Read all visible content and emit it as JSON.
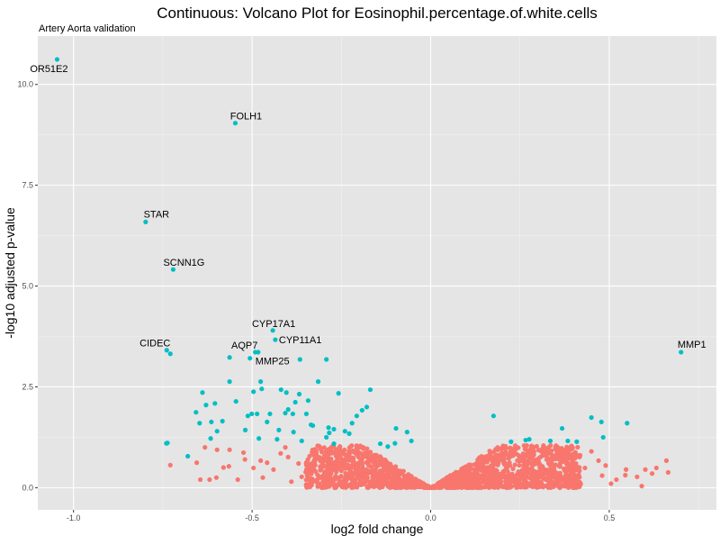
{
  "chart_data": {
    "type": "scatter",
    "title": "Continuous: Volcano Plot for Eosinophil.percentage.of.white.cells",
    "subtitle": "Artery Aorta validation",
    "xlabel": "log2 fold change",
    "ylabel": "-log10 adjusted p-value",
    "xlim": [
      -1.1,
      0.8
    ],
    "ylim": [
      -0.55,
      11.2
    ],
    "x_ticks": [
      {
        "v": -1.0,
        "label": "-1.0"
      },
      {
        "v": -0.5,
        "label": "-0.5"
      },
      {
        "v": 0.0,
        "label": "0.0"
      },
      {
        "v": 0.5,
        "label": "0.5"
      }
    ],
    "y_ticks": [
      {
        "v": 0.0,
        "label": "0.0"
      },
      {
        "v": 2.5,
        "label": "2.5"
      },
      {
        "v": 5.0,
        "label": "5.0"
      },
      {
        "v": 7.5,
        "label": "7.5"
      },
      {
        "v": 10.0,
        "label": "10.0"
      }
    ],
    "grid": true,
    "colors": {
      "significant": "#00BFC4",
      "not_significant": "#F8766D",
      "panel": "#E5E5E5"
    },
    "labeled_points": [
      {
        "gene": "OR51E2",
        "x": -1.046,
        "y": 10.62
      },
      {
        "gene": "FOLH1",
        "x": -0.547,
        "y": 9.04
      },
      {
        "gene": "STAR",
        "x": -0.798,
        "y": 6.59
      },
      {
        "gene": "SCNN1G",
        "x": -0.721,
        "y": 5.41
      },
      {
        "gene": "CYP17A1",
        "x": -0.442,
        "y": 3.9
      },
      {
        "gene": "CYP11A1",
        "x": -0.435,
        "y": 3.67
      },
      {
        "gene": "CIDEC",
        "x": -0.739,
        "y": 3.41
      },
      {
        "gene": "AQP7",
        "x": -0.491,
        "y": 3.36
      },
      {
        "gene": "MMP25",
        "x": -0.506,
        "y": 3.21
      },
      {
        "gene": "MMP1",
        "x": 0.701,
        "y": 3.36
      }
    ],
    "significant_points": [
      [
        -0.729,
        3.32
      ],
      [
        -0.483,
        3.36
      ],
      [
        -0.563,
        3.23
      ],
      [
        -0.366,
        3.18
      ],
      [
        -0.292,
        3.18
      ],
      [
        -0.563,
        2.63
      ],
      [
        -0.476,
        2.63
      ],
      [
        -0.404,
        2.36
      ],
      [
        -0.315,
        2.63
      ],
      [
        -0.639,
        2.36
      ],
      [
        -0.496,
        2.38
      ],
      [
        -0.473,
        2.45
      ],
      [
        -0.419,
        2.43
      ],
      [
        -0.368,
        2.32
      ],
      [
        -0.343,
        2.16
      ],
      [
        -0.379,
        2.12
      ],
      [
        -0.258,
        2.34
      ],
      [
        -0.169,
        2.43
      ],
      [
        -0.657,
        1.87
      ],
      [
        -0.629,
        2.05
      ],
      [
        -0.604,
        2.09
      ],
      [
        -0.545,
        2.14
      ],
      [
        -0.512,
        1.78
      ],
      [
        -0.501,
        1.83
      ],
      [
        -0.486,
        1.83
      ],
      [
        -0.45,
        1.83
      ],
      [
        -0.407,
        1.85
      ],
      [
        -0.399,
        1.94
      ],
      [
        -0.348,
        1.83
      ],
      [
        -0.386,
        1.83
      ],
      [
        -0.647,
        1.6
      ],
      [
        -0.614,
        1.63
      ],
      [
        -0.598,
        1.4
      ],
      [
        -0.583,
        1.65
      ],
      [
        -0.519,
        1.43
      ],
      [
        -0.458,
        1.63
      ],
      [
        -0.425,
        1.43
      ],
      [
        -0.335,
        1.56
      ],
      [
        -0.286,
        1.49
      ],
      [
        -0.24,
        1.4
      ],
      [
        -0.737,
        1.11
      ],
      [
        -0.68,
        0.78
      ],
      [
        -0.616,
        1.22
      ],
      [
        -0.481,
        1.22
      ],
      [
        -0.43,
        1.2
      ],
      [
        -0.384,
        1.38
      ],
      [
        -0.361,
        1.16
      ],
      [
        -0.292,
        1.25
      ],
      [
        -0.271,
        1.09
      ],
      [
        -0.228,
        1.34
      ],
      [
        -0.22,
        1.6
      ],
      [
        -0.207,
        1.78
      ],
      [
        -0.192,
        1.92
      ],
      [
        -0.179,
        2.0
      ],
      [
        -0.097,
        1.47
      ],
      [
        -0.066,
        1.38
      ],
      [
        -0.054,
        1.16
      ],
      [
        -0.141,
        1.09
      ],
      [
        -0.284,
        1.36
      ],
      [
        -0.271,
        1.45
      ],
      [
        -0.33,
        1.54
      ],
      [
        0.176,
        1.78
      ],
      [
        0.225,
        1.14
      ],
      [
        0.266,
        1.18
      ],
      [
        0.276,
        1.2
      ],
      [
        0.335,
        1.16
      ],
      [
        0.368,
        1.47
      ],
      [
        0.384,
        1.16
      ],
      [
        0.409,
        1.14
      ],
      [
        0.45,
        1.74
      ],
      [
        0.478,
        1.63
      ],
      [
        0.483,
        1.25
      ],
      [
        0.55,
        1.6
      ],
      [
        -0.74,
        1.1
      ],
      [
        -0.1,
        1.1
      ],
      [
        -0.12,
        1.02
      ]
    ],
    "nonsignificant_points": [
      [
        -0.632,
        1.0
      ],
      [
        -0.655,
        0.62
      ],
      [
        -0.729,
        0.56
      ],
      [
        -0.645,
        0.2
      ],
      [
        -0.619,
        0.2
      ],
      [
        -0.565,
        0.53
      ],
      [
        -0.563,
        0.94
      ],
      [
        -0.598,
        0.94
      ],
      [
        -0.524,
        0.87
      ],
      [
        -0.496,
        0.49
      ],
      [
        -0.476,
        0.67
      ],
      [
        -0.458,
        0.62
      ],
      [
        -0.407,
        1.0
      ],
      [
        -0.399,
        0.76
      ],
      [
        -0.361,
        0.27
      ],
      [
        -0.348,
        0.56
      ],
      [
        -0.6,
        0.25
      ],
      [
        -0.58,
        0.5
      ],
      [
        -0.54,
        0.2
      ],
      [
        -0.52,
        0.7
      ],
      [
        -0.47,
        0.25
      ],
      [
        -0.44,
        0.45
      ],
      [
        -0.42,
        0.85
      ],
      [
        -0.39,
        0.15
      ],
      [
        -0.37,
        0.6
      ],
      [
        0.547,
        0.45
      ],
      [
        0.578,
        0.27
      ],
      [
        0.591,
        0.04
      ],
      [
        0.601,
        0.45
      ],
      [
        0.632,
        0.49
      ],
      [
        0.66,
        0.67
      ],
      [
        0.665,
        0.38
      ],
      [
        0.545,
        0.31
      ],
      [
        0.47,
        0.67
      ],
      [
        0.432,
        0.49
      ],
      [
        0.394,
        0.38
      ],
      [
        0.52,
        0.2
      ],
      [
        0.49,
        0.55
      ],
      [
        0.45,
        0.9
      ],
      [
        0.41,
        0.8
      ],
      [
        0.38,
        0.95
      ],
      [
        0.36,
        0.7
      ],
      [
        0.62,
        0.35
      ],
      [
        0.505,
        0.1
      ],
      [
        0.48,
        0.3
      ]
    ],
    "nonsignificant_cloud": {
      "count": 1800,
      "x_range": [
        -0.35,
        0.42
      ],
      "y_max": 1.05,
      "v_slope": 5.5
    }
  }
}
